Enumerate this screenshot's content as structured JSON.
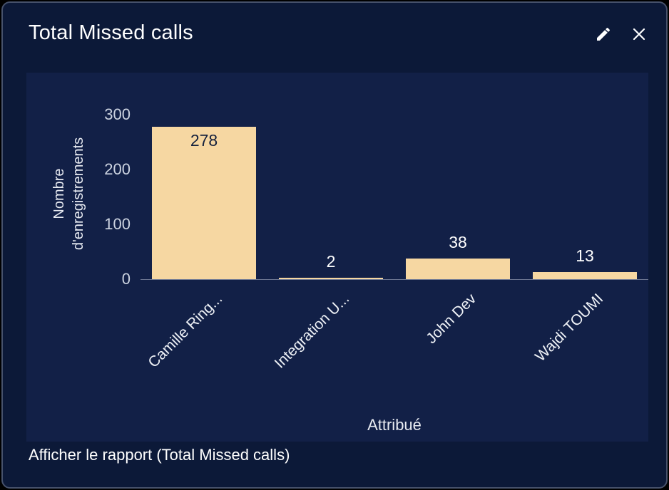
{
  "card": {
    "title": "Total Missed calls",
    "footer_link": "Afficher le rapport (Total Missed calls)"
  },
  "chart_data": {
    "type": "bar",
    "categories": [
      "Camille Ring...",
      "Integration U...",
      "John Dev",
      "Wajdi TOUMI"
    ],
    "values": [
      278,
      2,
      38,
      13
    ],
    "title": "Total Missed calls",
    "xlabel": "Attribué",
    "ylabel": "Nombre d'enregistrements",
    "yticks": [
      0,
      100,
      200,
      300
    ],
    "ylim": [
      0,
      300
    ],
    "legend": "none",
    "grid": "off",
    "bar_color": "#f6d7a2",
    "label_inside_color": "#14213d",
    "label_outside_color": "#ffffff",
    "background_color": "#122047"
  }
}
